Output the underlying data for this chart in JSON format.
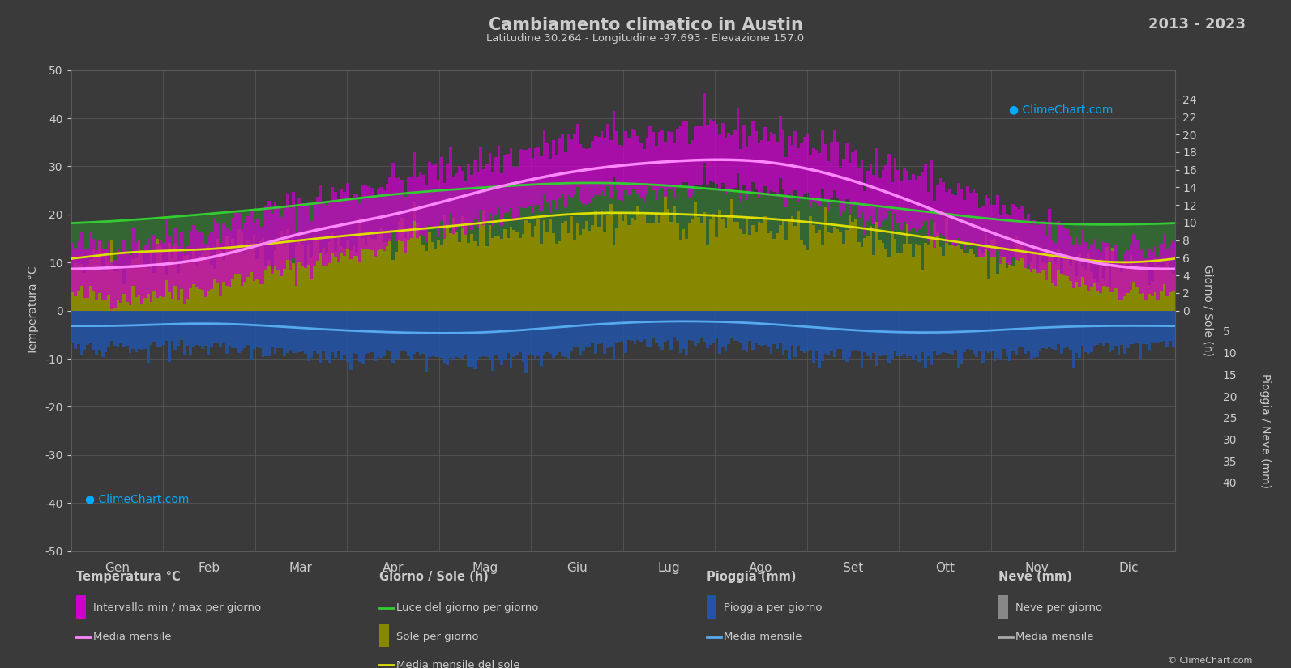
{
  "title": "Cambiamento climatico in Austin",
  "subtitle": "Latitudine 30.264 - Longitudine -97.693 - Elevazione 157.0",
  "year_range": "2013 - 2023",
  "bg_color": "#3a3a3a",
  "plot_bg_color": "#3a3a3a",
  "grid_color": "#5a5a5a",
  "text_color": "#cccccc",
  "months": [
    "Gen",
    "Feb",
    "Mar",
    "Apr",
    "Mag",
    "Giu",
    "Lug",
    "Ago",
    "Set",
    "Ott",
    "Nov",
    "Dic"
  ],
  "temp_min_daily": [
    3,
    5,
    9,
    14,
    19,
    23,
    25,
    25,
    21,
    15,
    8,
    4
  ],
  "temp_max_daily": [
    14,
    17,
    22,
    27,
    31,
    35,
    37,
    37,
    32,
    26,
    18,
    13
  ],
  "temp_mean_monthly": [
    9,
    11,
    16,
    20,
    25,
    29,
    31,
    31,
    27,
    20,
    13,
    9
  ],
  "sunshine_hours_daily": [
    5.5,
    6.5,
    7.5,
    8.5,
    9.0,
    10.0,
    10.5,
    9.5,
    8.5,
    7.5,
    6.0,
    5.0
  ],
  "daylight_hours_daily": [
    10.2,
    11.0,
    12.0,
    13.2,
    14.0,
    14.5,
    14.2,
    13.3,
    12.2,
    11.0,
    10.0,
    9.8
  ],
  "sunshine_mean_monthly": [
    6.5,
    7.0,
    8.0,
    9.0,
    10.0,
    11.0,
    11.0,
    10.5,
    9.5,
    8.0,
    6.5,
    5.5
  ],
  "rain_daily_max": [
    7,
    7,
    9,
    9,
    10,
    8,
    6,
    7,
    9,
    9,
    8,
    7
  ],
  "rain_monthly_mean": [
    3.5,
    3.0,
    4.0,
    5.0,
    5.0,
    3.5,
    2.5,
    3.0,
    4.5,
    5.0,
    4.0,
    3.5
  ],
  "ylim_temp": [
    -50,
    50
  ],
  "sun_scale": 1.83,
  "rain_scale": 0.9,
  "color_daylight": "#336633",
  "color_daylight_line": "#33cc33",
  "color_sunshine": "#888800",
  "color_sun_mean_line": "#dddd00",
  "color_temp_range": "#cc00cc",
  "color_temp_mean_line": "#ff88ff",
  "color_rain": "#2255aa",
  "color_rain_mean_line": "#55aaee",
  "color_snow": "#888888",
  "color_snow_mean_line": "#aaaaaa"
}
